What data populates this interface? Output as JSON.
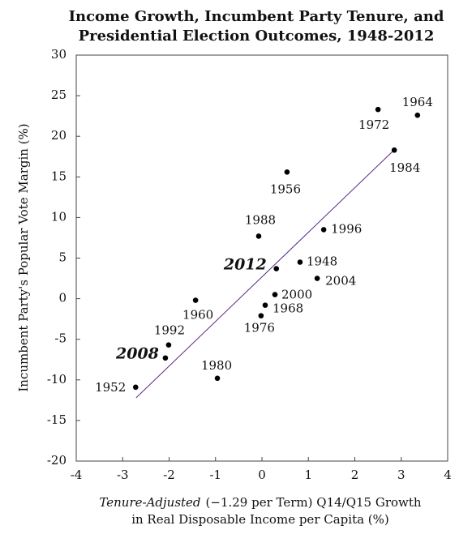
{
  "chart_data": {
    "type": "scatter",
    "title": [
      "Income Growth, Incumbent Party Tenure, and",
      "Presidential Election Outcomes, 1948-2012"
    ],
    "x_label": [
      "Tenure-Adjusted",
      "(−1.29 per Term) Q14/Q15 Growth",
      "in Real Disposable Income per Capita (%)"
    ],
    "y_label": "Incumbent Party's Popular Vote Margin (%)",
    "point_labels": [
      "1964",
      "1972",
      "1984",
      "1956",
      "1996",
      "1988",
      "1948",
      "2012",
      "2004",
      "2000",
      "1968",
      "1976",
      "1960",
      "1992",
      "2008",
      "1980",
      "1952"
    ],
    "x": [
      3.35,
      2.5,
      2.85,
      0.54,
      1.33,
      -0.07,
      0.82,
      0.31,
      1.19,
      0.28,
      0.07,
      -0.02,
      -1.43,
      -2.01,
      -2.08,
      -0.96,
      -2.72
    ],
    "values": [
      22.6,
      23.3,
      18.3,
      15.6,
      8.5,
      7.7,
      4.5,
      3.7,
      2.5,
      0.5,
      -0.8,
      -2.1,
      -0.2,
      -5.7,
      -7.3,
      -9.8,
      -10.9
    ],
    "color": "#000000",
    "fit_line": {
      "x": [
        -2.71,
        2.88
      ],
      "y": [
        -12.2,
        18.5
      ],
      "color": "#5b2a86"
    },
    "xlim": [
      -4,
      4
    ],
    "xticks": [
      -4,
      -3,
      -2,
      -1,
      0,
      1,
      2,
      3,
      4
    ],
    "ylim": [
      -20,
      30
    ],
    "yticks": [
      -20,
      -15,
      -10,
      -5,
      0,
      5,
      10,
      15,
      20,
      25,
      30
    ],
    "grid": false
  }
}
